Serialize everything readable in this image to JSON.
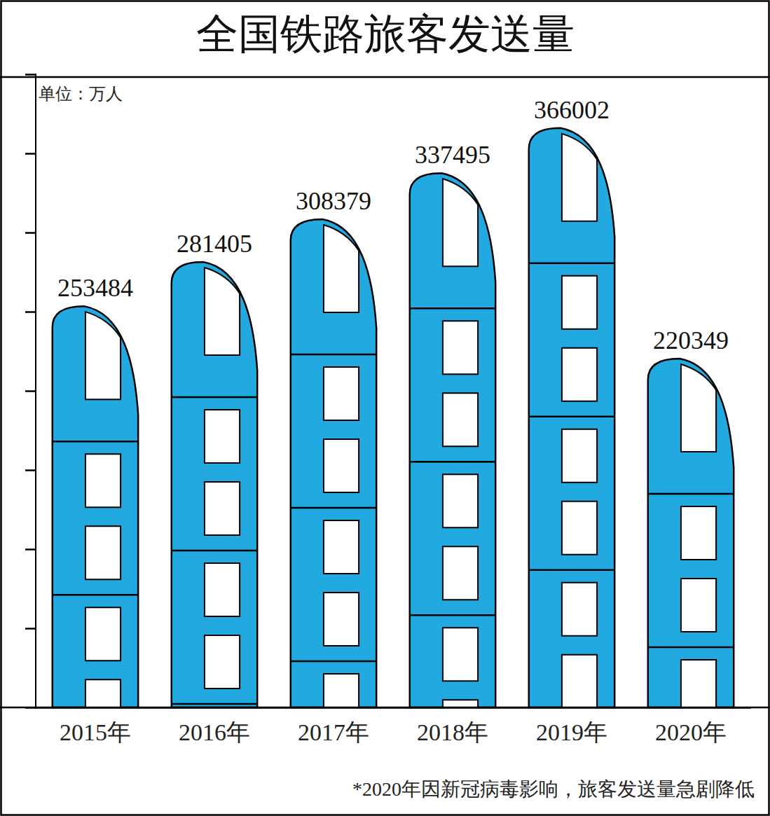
{
  "chart_data": {
    "type": "bar",
    "title": "全国铁路旅客发送量",
    "ylabel": "单位：万人",
    "annotations": [
      "*2020年因新冠病毒影响，旅客发送量急剧降低"
    ],
    "categories": [
      "2015年",
      "2016年",
      "2017年",
      "2018年",
      "2019年",
      "2020年"
    ],
    "values": [
      253484,
      281405,
      308379,
      337495,
      366002,
      220349
    ],
    "color": "#22a9df",
    "ylim": [
      0,
      400000
    ],
    "yticks": [
      0,
      50000,
      100000,
      150000,
      200000,
      250000,
      300000,
      350000,
      400000
    ],
    "grid": false,
    "data_labels": true,
    "tick_labels": "x"
  }
}
